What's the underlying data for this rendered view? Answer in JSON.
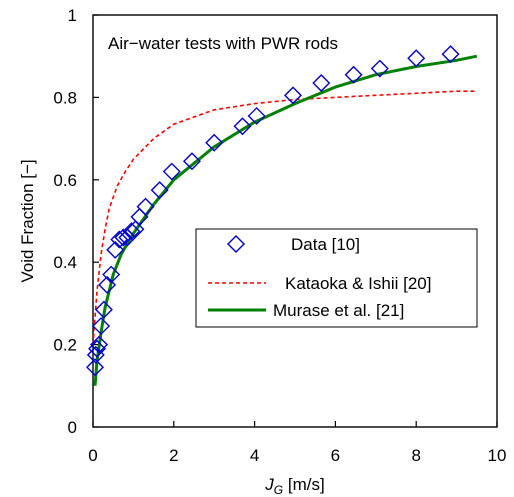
{
  "chart_data": {
    "type": "scatter",
    "annotation": "Air−water tests with PWR rods",
    "xlabel_main": "J",
    "xlabel_sub": "G",
    "xlabel_unit": " [m/s]",
    "ylabel": "Void Fraction [−]",
    "xlim": [
      0,
      10
    ],
    "ylim": [
      0,
      1
    ],
    "xticks": [
      0,
      2,
      4,
      6,
      8,
      10
    ],
    "yticks": [
      0,
      0.2,
      0.4,
      0.6,
      0.8,
      1
    ],
    "ytick_labels": [
      "0",
      "0.2",
      "0.4",
      "0.6",
      "0.8",
      "1"
    ],
    "grid": false,
    "legend_position": "lower-right",
    "series": [
      {
        "name": "Data [10]",
        "style": "marker",
        "marker": "diamond-open",
        "color": "#0000cc",
        "x": [
          0.05,
          0.07,
          0.1,
          0.15,
          0.2,
          0.27,
          0.35,
          0.45,
          0.55,
          0.65,
          0.75,
          0.85,
          0.95,
          1.05,
          1.15,
          1.3,
          1.65,
          1.95,
          2.45,
          3.0,
          3.7,
          4.05,
          4.95,
          5.65,
          6.45,
          7.1,
          8.0,
          8.85
        ],
        "y": [
          0.145,
          0.175,
          0.19,
          0.2,
          0.245,
          0.285,
          0.345,
          0.37,
          0.43,
          0.455,
          0.46,
          0.46,
          0.475,
          0.48,
          0.51,
          0.535,
          0.575,
          0.62,
          0.645,
          0.69,
          0.73,
          0.755,
          0.805,
          0.835,
          0.855,
          0.87,
          0.895,
          0.905
        ]
      },
      {
        "name": "Kataoka & Ishii [20]",
        "style": "dashed",
        "color": "#ff0000",
        "x": [
          0.0,
          0.1,
          0.2,
          0.3,
          0.4,
          0.6,
          0.8,
          1.0,
          1.5,
          2.0,
          3.0,
          4.0,
          5.0,
          6.0,
          7.0,
          8.0,
          9.0,
          9.5
        ],
        "y": [
          0.2,
          0.33,
          0.42,
          0.48,
          0.53,
          0.585,
          0.62,
          0.65,
          0.7,
          0.735,
          0.77,
          0.785,
          0.795,
          0.8,
          0.805,
          0.81,
          0.815,
          0.815
        ]
      },
      {
        "name": "Murase et al. [21]",
        "style": "solid",
        "color": "#008000",
        "x": [
          0.05,
          0.1,
          0.2,
          0.3,
          0.5,
          0.7,
          1.0,
          1.5,
          2.0,
          3.0,
          4.0,
          5.0,
          6.0,
          7.0,
          8.0,
          9.0,
          9.5
        ],
        "y": [
          0.1,
          0.16,
          0.23,
          0.29,
          0.37,
          0.42,
          0.47,
          0.54,
          0.6,
          0.68,
          0.74,
          0.785,
          0.825,
          0.855,
          0.875,
          0.89,
          0.9
        ]
      }
    ]
  }
}
